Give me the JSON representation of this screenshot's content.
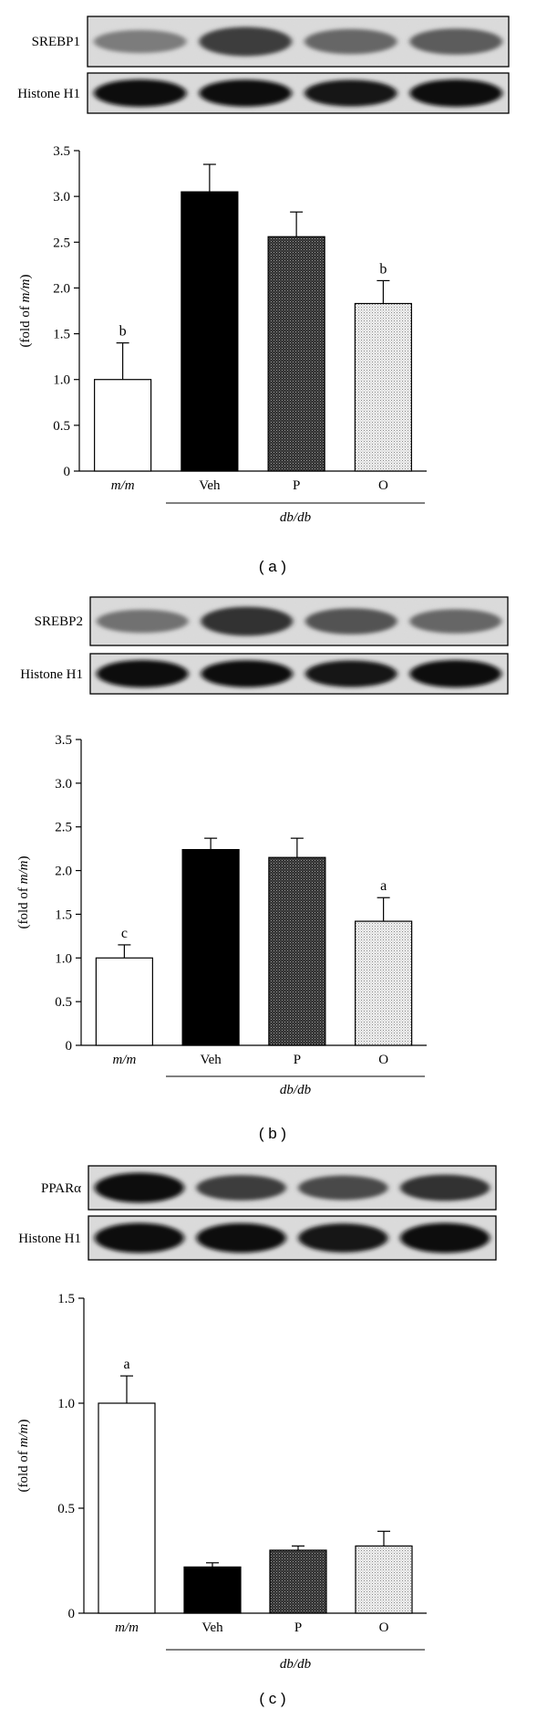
{
  "panels": [
    {
      "caption": "( a )",
      "blots": [
        {
          "label": "SREBP1",
          "intensity": [
            0.45,
            0.75,
            0.55,
            0.6
          ]
        },
        {
          "label": "Histone H1",
          "intensity": [
            1.0,
            0.98,
            0.95,
            1.0
          ]
        }
      ]
    },
    {
      "caption": "( b )",
      "blots": [
        {
          "label": "SREBP2",
          "intensity": [
            0.5,
            0.8,
            0.65,
            0.55
          ]
        },
        {
          "label": "Histone H1",
          "intensity": [
            1.0,
            0.98,
            0.95,
            1.0
          ]
        }
      ]
    },
    {
      "caption": "( c )",
      "blots": [
        {
          "label": "PPARα",
          "intensity": [
            1.0,
            0.75,
            0.7,
            0.8
          ]
        },
        {
          "label": "Histone H1",
          "intensity": [
            1.0,
            0.98,
            0.95,
            1.0
          ]
        }
      ]
    }
  ],
  "group_label": "db/db",
  "chart_data": [
    {
      "type": "bar",
      "categories": [
        "m/m",
        "Veh",
        "P",
        "O"
      ],
      "values": [
        1.0,
        3.05,
        2.56,
        1.83
      ],
      "errors": [
        0.4,
        0.3,
        0.27,
        0.25
      ],
      "annotations": [
        "b",
        "",
        "",
        "b"
      ],
      "ylabel": "(fold of m/m)",
      "ylim": [
        0,
        3.5
      ],
      "yticks": [
        "0",
        "0.5",
        "1.0",
        "1.5",
        "2.0",
        "2.5",
        "3.0",
        "3.5"
      ],
      "fills": [
        "white",
        "black",
        "dark-dotted",
        "light-dotted"
      ]
    },
    {
      "type": "bar",
      "categories": [
        "m/m",
        "Veh",
        "P",
        "O"
      ],
      "values": [
        1.0,
        2.24,
        2.15,
        1.42
      ],
      "errors": [
        0.15,
        0.13,
        0.22,
        0.27
      ],
      "annotations": [
        "c",
        "",
        "",
        "a"
      ],
      "ylabel": "(fold of m/m)",
      "ylim": [
        0,
        3.5
      ],
      "yticks": [
        "0",
        "0.5",
        "1.0",
        "1.5",
        "2.0",
        "2.5",
        "3.0",
        "3.5"
      ],
      "fills": [
        "white",
        "black",
        "dark-dotted",
        "light-dotted"
      ]
    },
    {
      "type": "bar",
      "categories": [
        "m/m",
        "Veh",
        "P",
        "O"
      ],
      "values": [
        1.0,
        0.22,
        0.3,
        0.32
      ],
      "errors": [
        0.13,
        0.02,
        0.02,
        0.07
      ],
      "annotations": [
        "a",
        "",
        "",
        ""
      ],
      "ylabel": "(fold of m/m)",
      "ylim": [
        0,
        1.5
      ],
      "yticks": [
        "0",
        "0.5",
        "1.0",
        "1.5"
      ],
      "fills": [
        "white",
        "black",
        "dark-dotted",
        "light-dotted"
      ]
    }
  ]
}
